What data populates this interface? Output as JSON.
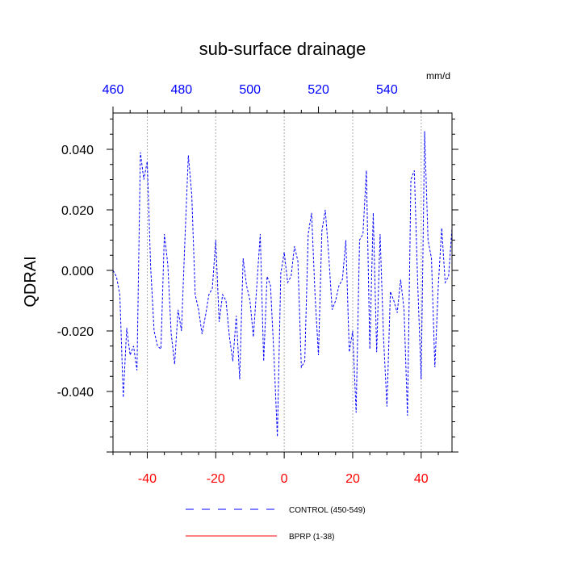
{
  "chart_data": {
    "type": "line",
    "title": "sub-surface drainage",
    "ylabel": "QDRAI",
    "units_label": "mm/d",
    "xlim": [
      -50,
      49
    ],
    "ylim": [
      -0.06,
      0.052
    ],
    "grid": false,
    "bottom_axis": {
      "ticks": [
        -40,
        -20,
        0,
        20,
        40
      ],
      "tick_labels": [
        "-40",
        "-20",
        "0",
        "20",
        "40"
      ],
      "color": "#ff0000"
    },
    "top_axis": {
      "ticks": [
        460,
        480,
        500,
        520,
        540
      ],
      "tick_labels": [
        "460",
        "480",
        "500",
        "520",
        "540"
      ],
      "offset": 510,
      "color": "#0000ff"
    },
    "y_ticks": [
      0.04,
      0.02,
      0.0,
      -0.02,
      -0.04
    ],
    "y_tick_labels": [
      "0.040",
      "0.020",
      "0.000",
      "-0.020",
      "-0.040"
    ],
    "reference_lines": [
      -40,
      -20,
      0,
      20,
      40
    ],
    "legend_position": "bottom",
    "series": [
      {
        "name": "CONTROL (450-549)",
        "color": "#0000ff",
        "style": "dashed",
        "x": [
          -50,
          -49,
          -48,
          -47,
          -46,
          -45,
          -44,
          -43,
          -42,
          -41,
          -40,
          -39,
          -38,
          -37,
          -36,
          -35,
          -34,
          -33,
          -32,
          -31,
          -30,
          -29,
          -28,
          -27,
          -26,
          -25,
          -24,
          -23,
          -22,
          -21,
          -20,
          -19,
          -18,
          -17,
          -16,
          -15,
          -14,
          -13,
          -12,
          -11,
          -10,
          -9,
          -8,
          -7,
          -6,
          -5,
          -4,
          -3,
          -2,
          -1,
          0,
          1,
          2,
          3,
          4,
          5,
          6,
          7,
          8,
          9,
          10,
          11,
          12,
          13,
          14,
          15,
          16,
          17,
          18,
          19,
          20,
          21,
          22,
          23,
          24,
          25,
          26,
          27,
          28,
          29,
          30,
          31,
          32,
          33,
          34,
          35,
          36,
          37,
          38,
          39,
          40,
          41,
          42,
          43,
          44,
          45,
          46,
          47,
          48,
          49
        ],
        "values": [
          0.0,
          -0.002,
          -0.008,
          -0.042,
          -0.019,
          -0.028,
          -0.025,
          -0.033,
          0.039,
          0.03,
          0.036,
          0.001,
          -0.02,
          -0.025,
          -0.026,
          0.012,
          0.002,
          -0.021,
          -0.031,
          -0.013,
          -0.02,
          0.01,
          0.038,
          0.025,
          -0.008,
          -0.013,
          -0.021,
          -0.015,
          -0.008,
          -0.006,
          0.01,
          -0.017,
          -0.008,
          -0.01,
          -0.022,
          -0.03,
          -0.015,
          -0.036,
          0.004,
          -0.005,
          -0.01,
          -0.022,
          -0.005,
          0.012,
          -0.03,
          -0.002,
          -0.005,
          -0.028,
          -0.055,
          -0.001,
          0.006,
          -0.004,
          -0.002,
          0.008,
          0.003,
          -0.032,
          -0.03,
          0.012,
          0.019,
          -0.008,
          -0.028,
          0.013,
          0.02,
          0.005,
          -0.013,
          -0.01,
          -0.005,
          -0.003,
          0.01,
          -0.027,
          -0.02,
          -0.047,
          0.01,
          0.012,
          0.033,
          -0.026,
          0.019,
          -0.027,
          0.012,
          -0.022,
          -0.045,
          -0.007,
          -0.01,
          -0.014,
          -0.003,
          -0.013,
          -0.048,
          0.03,
          0.033,
          -0.005,
          -0.036,
          0.046,
          0.01,
          0.004,
          -0.032,
          -0.005,
          0.014,
          -0.004,
          -0.002,
          0.014
        ]
      },
      {
        "name": "BPRP (1-38)",
        "color": "#ff0000",
        "style": "solid",
        "x": [],
        "values": []
      }
    ]
  }
}
